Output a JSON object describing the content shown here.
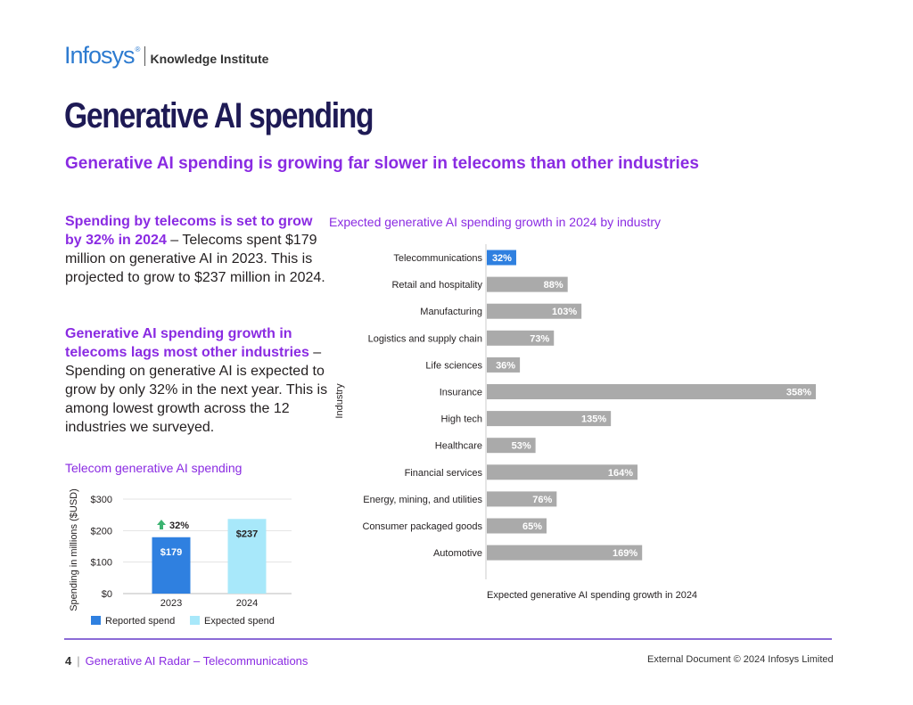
{
  "brand": {
    "logo_text": "Infosys",
    "logo_mark": "®",
    "sub": "Knowledge Institute"
  },
  "page_title": "Generative AI spending",
  "subtitle": "Generative AI spending is growing far slower in telecoms than other industries",
  "para1": {
    "highlight": "Spending by telecoms is set to grow by 32% in 2024",
    "body": " – Telecoms spent $179 million on generative AI in 2023. This is projected to grow to $237 million in 2024."
  },
  "para2": {
    "highlight": "Generative AI spending growth in telecoms lags most other industries",
    "body": " – Spending on generative AI is expected to grow by only 32% in the next year. This is among lowest growth across the 12 industries we surveyed."
  },
  "footer": {
    "page_number": "4",
    "separator": "|",
    "doc_name": "Generative AI Radar – Telecommunications",
    "rights": "External Document © 2024 Infosys Limited"
  },
  "colors": {
    "accent": "#8a2be2",
    "title": "#1e1a55",
    "highlight_bar": "#2f80e0",
    "gray_bar": "#aaaaaa",
    "expected": "#a8e8fa",
    "reported": "#2f80e0"
  },
  "chart_data": [
    {
      "type": "bar",
      "title": "Telecom generative AI spending",
      "ylabel": "Spending in millions ($USD)",
      "xlabel": "",
      "categories": [
        "2023",
        "2024"
      ],
      "values": [
        179,
        237
      ],
      "value_labels": [
        "$179",
        "$237"
      ],
      "series_legend": [
        "Reported spend",
        "Expected spend"
      ],
      "ylim": [
        0,
        300
      ],
      "yticks": [
        0,
        100,
        200,
        300
      ],
      "ytick_labels": [
        "$0",
        "$100",
        "$200",
        "$300"
      ],
      "annotation": "32%",
      "annotation_icon": "up-arrow-icon",
      "grid": true,
      "legend": "bottom"
    },
    {
      "type": "bar",
      "orientation": "horizontal",
      "title": "Expected generative AI spending growth in 2024 by industry",
      "xlabel": "Expected generative AI spending growth in 2024",
      "ylabel": "Industry",
      "categories": [
        "Telecommunications",
        "Retail and hospitality",
        "Manufacturing",
        "Logistics and supply chain",
        "Life sciences",
        "Insurance",
        "High tech",
        "Healthcare",
        "Financial services",
        "Energy, mining, and utilities",
        "Consumer packaged goods",
        "Automotive"
      ],
      "values": [
        32,
        88,
        103,
        73,
        36,
        358,
        135,
        53,
        164,
        76,
        65,
        169
      ],
      "value_labels": [
        "32%",
        "88%",
        "103%",
        "73%",
        "36%",
        "358%",
        "135%",
        "53%",
        "164%",
        "76%",
        "65%",
        "169%"
      ],
      "highlight": "Telecommunications",
      "xlim": [
        0,
        358
      ],
      "grid": false,
      "legend": "none"
    }
  ]
}
